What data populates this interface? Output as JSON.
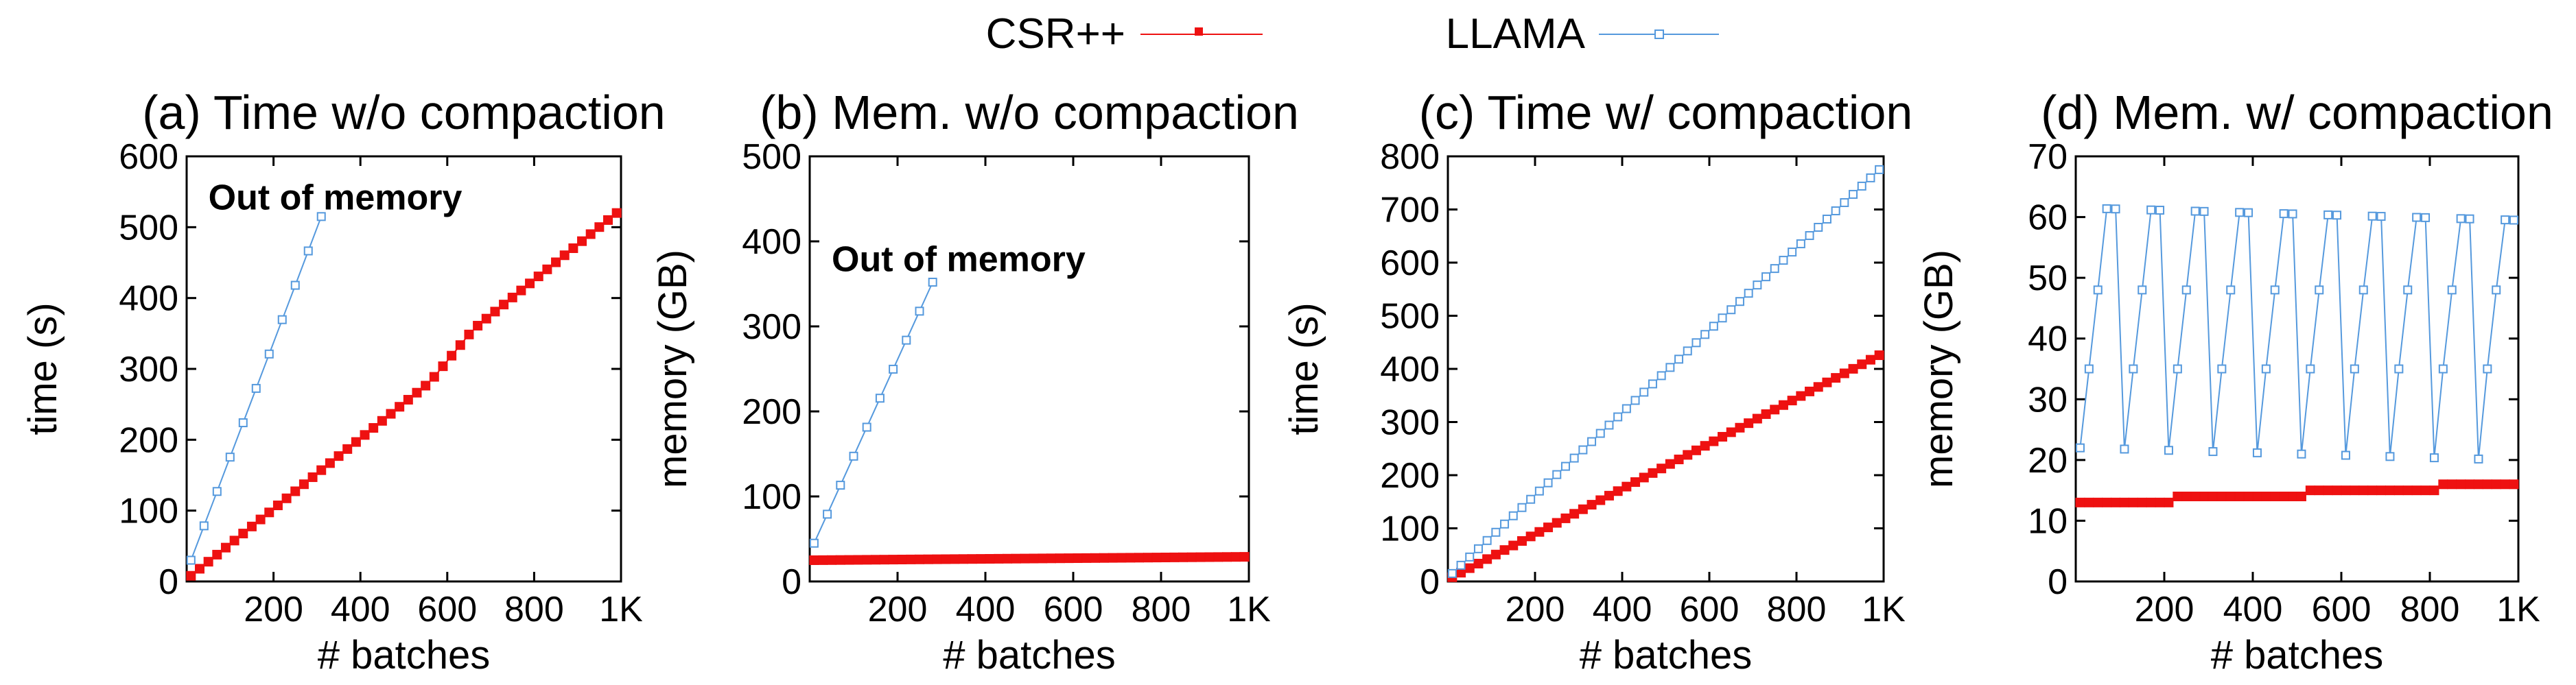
{
  "legend": [
    {
      "name": "CSR++",
      "color": "#ee1111",
      "marker": "filled-square"
    },
    {
      "name": "LLAMA",
      "color": "#5599dd",
      "marker": "open-square"
    }
  ],
  "chart_data": [
    {
      "type": "line",
      "title": "(a) Time w/o compaction",
      "xlabel": "# batches",
      "ylabel": "time (s)",
      "xlim": [
        0,
        1000
      ],
      "ylim": [
        0,
        600
      ],
      "xticks": [
        200,
        400,
        600,
        800,
        1000
      ],
      "xtick_labels": [
        "200",
        "400",
        "600",
        "800",
        "1K"
      ],
      "yticks": [
        0,
        100,
        200,
        300,
        400,
        500,
        600
      ],
      "ytick_labels": [
        "0",
        "100",
        "200",
        "300",
        "400",
        "500",
        "600"
      ],
      "annotation": {
        "text": "Out of memory",
        "x": 50,
        "y": 525
      },
      "series": [
        {
          "name": "CSR++",
          "generator": {
            "kind": "linear",
            "x0": 10,
            "x1": 1000,
            "step": 20,
            "y0": 8,
            "y1": 500,
            "bump": {
              "x0": 560,
              "x1": 660,
              "dy": 25
            }
          }
        },
        {
          "name": "LLAMA",
          "generator": {
            "kind": "linear",
            "x0": 10,
            "x1": 310,
            "step": 30,
            "y0": 30,
            "y1": 515
          }
        }
      ]
    },
    {
      "type": "line",
      "title": "(b) Mem. w/o compaction",
      "xlabel": "# batches",
      "ylabel": "memory (GB)",
      "xlim": [
        0,
        1000
      ],
      "ylim": [
        0,
        500
      ],
      "xticks": [
        200,
        400,
        600,
        800,
        1000
      ],
      "xtick_labels": [
        "200",
        "400",
        "600",
        "800",
        "1K"
      ],
      "yticks": [
        0,
        100,
        200,
        300,
        400,
        500
      ],
      "ytick_labels": [
        "0",
        "100",
        "200",
        "300",
        "400",
        "500"
      ],
      "annotation": {
        "text": "Out of memory",
        "x": 50,
        "y": 365
      },
      "series": [
        {
          "name": "CSR++",
          "generator": {
            "kind": "linear",
            "x0": 10,
            "x1": 1000,
            "step": 20,
            "y0": 25,
            "y1": 29
          }
        },
        {
          "name": "LLAMA",
          "generator": {
            "kind": "linear",
            "x0": 10,
            "x1": 280,
            "step": 30,
            "y0": 45,
            "y1": 352
          }
        }
      ]
    },
    {
      "type": "line",
      "title": "(c) Time w/ compaction",
      "xlabel": "# batches",
      "ylabel": "time (s)",
      "xlim": [
        0,
        1000
      ],
      "ylim": [
        0,
        800
      ],
      "xticks": [
        200,
        400,
        600,
        800,
        1000
      ],
      "xtick_labels": [
        "200",
        "400",
        "600",
        "800",
        "1K"
      ],
      "yticks": [
        0,
        100,
        200,
        300,
        400,
        500,
        600,
        700,
        800
      ],
      "ytick_labels": [
        "0",
        "100",
        "200",
        "300",
        "400",
        "500",
        "600",
        "700",
        "800"
      ],
      "series": [
        {
          "name": "CSR++",
          "generator": {
            "kind": "linear",
            "x0": 10,
            "x1": 1000,
            "step": 20,
            "y0": 8,
            "y1": 430
          }
        },
        {
          "name": "LLAMA",
          "generator": {
            "kind": "linear",
            "x0": 10,
            "x1": 990,
            "step": 20,
            "y0": 15,
            "y1": 775
          }
        }
      ]
    },
    {
      "type": "line",
      "title": "(d) Mem. w/ compaction",
      "xlabel": "# batches",
      "ylabel": "memory (GB)",
      "xlim": [
        0,
        1000
      ],
      "ylim": [
        0,
        70
      ],
      "xticks": [
        200,
        400,
        600,
        800,
        1000
      ],
      "xtick_labels": [
        "200",
        "400",
        "600",
        "800",
        "1K"
      ],
      "yticks": [
        0,
        10,
        20,
        30,
        40,
        50,
        60,
        70
      ],
      "ytick_labels": [
        "0",
        "10",
        "20",
        "30",
        "40",
        "50",
        "60",
        "70"
      ],
      "series": [
        {
          "name": "CSR++",
          "generator": {
            "kind": "steps",
            "x0": 10,
            "x1": 1000,
            "step": 20,
            "levels": [
              [
                0,
                13
              ],
              [
                220,
                14
              ],
              [
                520,
                15
              ],
              [
                830,
                16
              ]
            ]
          }
        },
        {
          "name": "LLAMA",
          "generator": {
            "kind": "sawtooth",
            "x0": 10,
            "x1": 990,
            "step": 20,
            "period": 5,
            "lo0": 22,
            "lo1": 20,
            "hi0": 61.5,
            "hi1": 59.5,
            "mid1": 35,
            "mid2": 48
          }
        }
      ]
    }
  ]
}
